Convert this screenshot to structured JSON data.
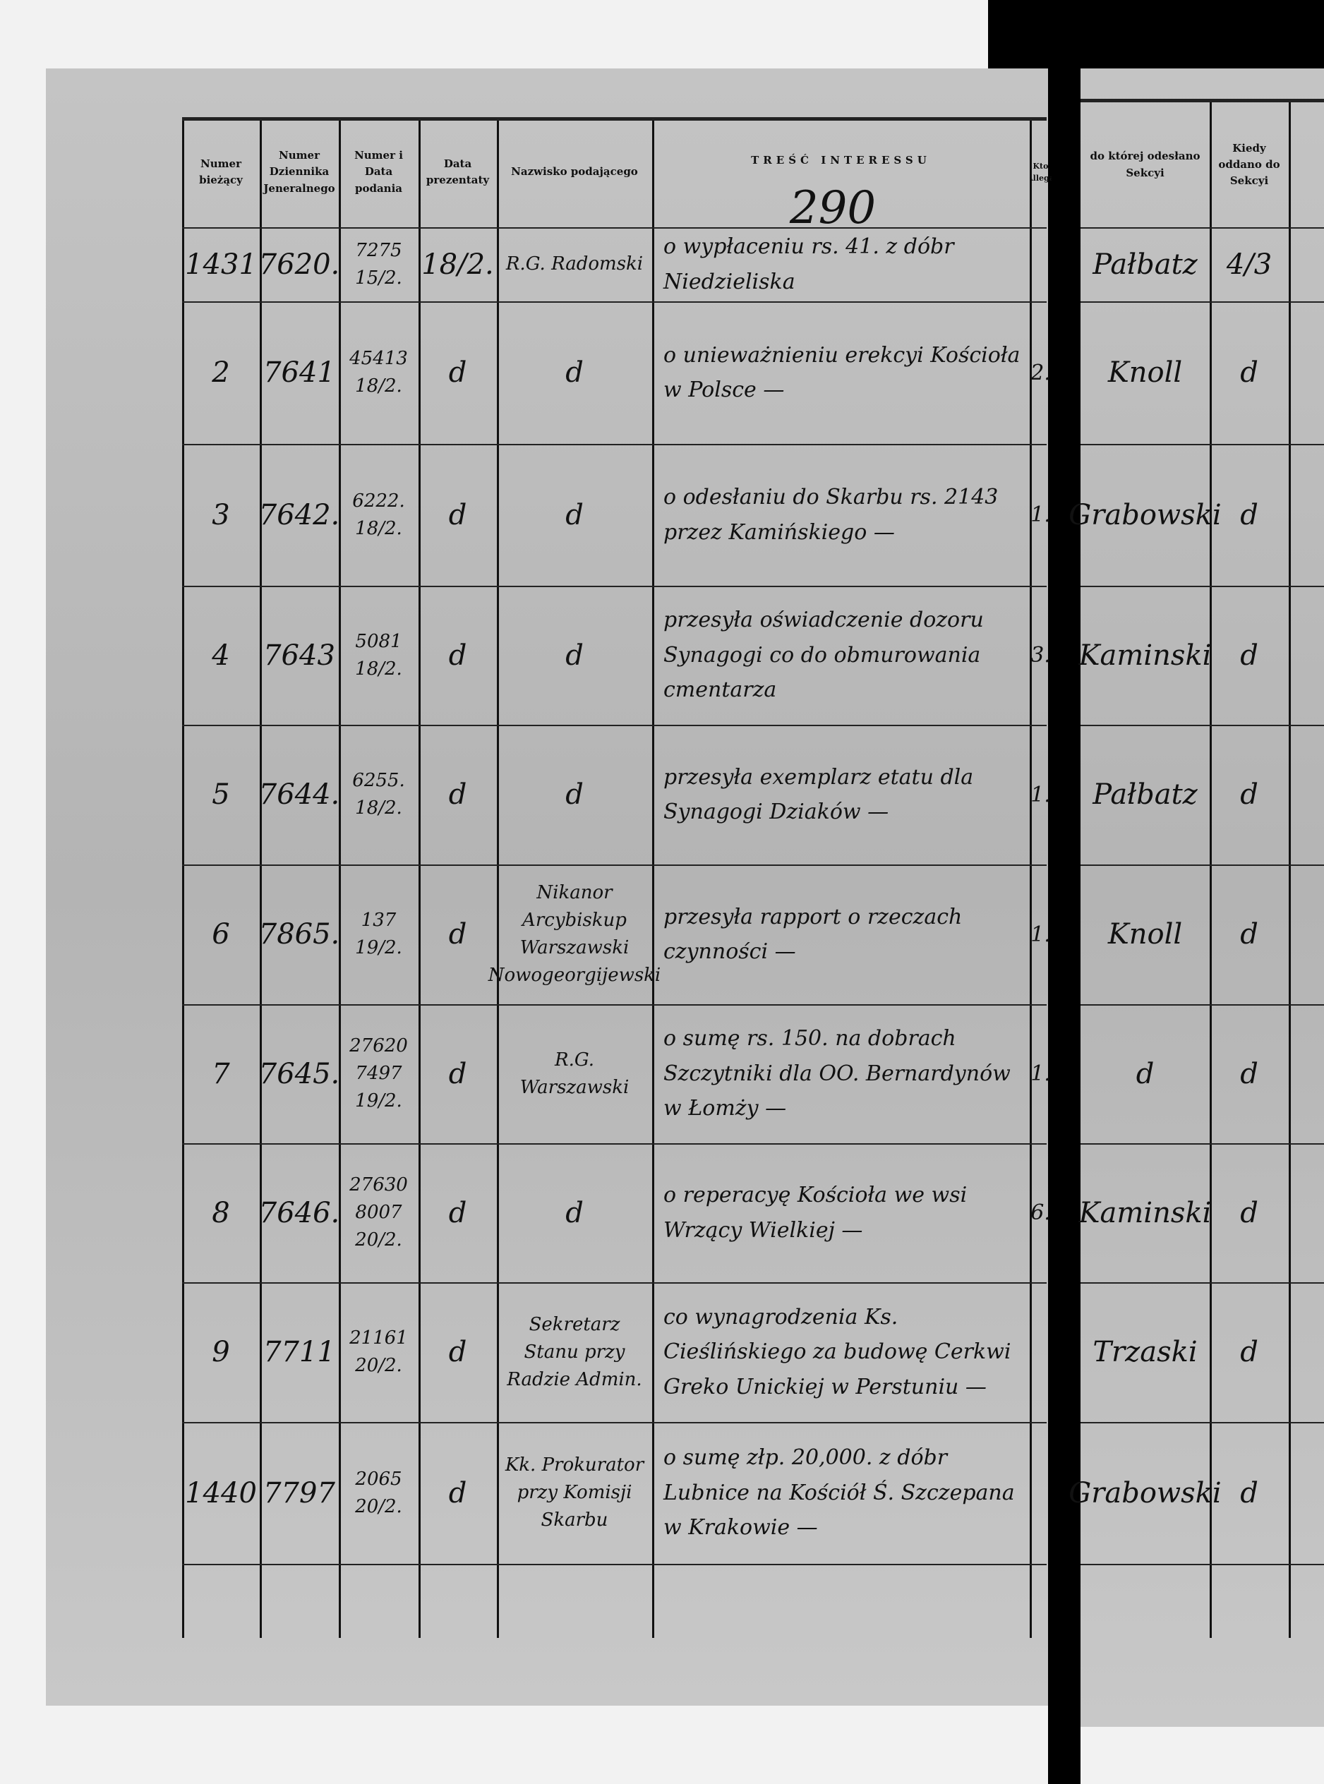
{
  "page_number": "290",
  "header": {
    "num": "Numer bieżący",
    "dziennik": "Numer Dziennika Jeneralnego",
    "podanie": "Numer i Data podania",
    "prezentata": "Data prezentaty",
    "nazwisko": "Nazwisko podającego",
    "tresc": "TREŚĆ INTERESSU",
    "allega": "Kto Allega",
    "sekcja": "do której odesłano Sekcyi",
    "kiedy": "Kiedy oddano do Sekcyi"
  },
  "rows": [
    {
      "num": "1431",
      "dziennik": "7620.",
      "podanie": "7275 15/2.",
      "prezentata": "18/2.",
      "nazwisko": "R.G. Radomski",
      "tresc": "o wypłaceniu rs. 41. z dóbr Niedzieliska",
      "sekcja": "Pałbatz",
      "kiedy": "4/3"
    },
    {
      "num": "2",
      "dziennik": "7641",
      "podanie": "45413 18/2.",
      "prezentata": "d",
      "nazwisko": "d",
      "tresc": "o unieważnieniu erekcyi Kościoła w Polsce —",
      "allega": "2.",
      "sekcja": "Knoll",
      "kiedy": "d"
    },
    {
      "num": "3",
      "dziennik": "7642.",
      "podanie": "6222. 18/2.",
      "prezentata": "d",
      "nazwisko": "d",
      "tresc": "o odesłaniu do Skarbu rs. 2143 przez Kamińskiego —",
      "allega": "1.",
      "sekcja": "Grabowski",
      "kiedy": "d"
    },
    {
      "num": "4",
      "dziennik": "7643",
      "podanie": "5081 18/2.",
      "prezentata": "d",
      "nazwisko": "d",
      "tresc": "przesyła oświadczenie dozoru Synagogi co do obmurowania cmentarza",
      "allega": "3.",
      "sekcja": "Kaminski",
      "kiedy": "d"
    },
    {
      "num": "5",
      "dziennik": "7644.",
      "podanie": "6255. 18/2.",
      "prezentata": "d",
      "nazwisko": "d",
      "tresc": "przesyła exemplarz etatu dla Synagogi Dziaków —",
      "allega": "1.",
      "sekcja": "Pałbatz",
      "kiedy": "d"
    },
    {
      "num": "6",
      "dziennik": "7865.",
      "podanie": "137 19/2.",
      "prezentata": "d",
      "nazwisko": "Nikanor Arcybiskup Warszawski Nowogeorgijewski",
      "tresc": "przesyła rapport o rzeczach czynności —",
      "allega": "1.",
      "sekcja": "Knoll",
      "kiedy": "d"
    },
    {
      "num": "7",
      "dziennik": "7645.",
      "podanie": "27620 7497 19/2.",
      "prezentata": "d",
      "nazwisko": "R.G. Warszawski",
      "tresc": "o sumę rs. 150. na dobrach Szczytniki dla OO. Bernardynów w Łomży —",
      "allega": "1.",
      "sekcja": "d",
      "kiedy": "d"
    },
    {
      "num": "8",
      "dziennik": "7646.",
      "podanie": "27630 8007 20/2.",
      "prezentata": "d",
      "nazwisko": "d",
      "tresc": "o reperacyę Kościoła we wsi Wrzący Wielkiej —",
      "allega": "6.",
      "sekcja": "Kaminski",
      "kiedy": "d"
    },
    {
      "num": "9",
      "dziennik": "7711",
      "podanie": "21161 20/2.",
      "prezentata": "d",
      "nazwisko": "Sekretarz Stanu przy Radzie Admin.",
      "tresc": "co wynagrodzenia Ks. Cieślińskiego za budowę Cerkwi Greko Unickiej w Perstuniu —",
      "sekcja": "Trzaski",
      "kiedy": "d"
    },
    {
      "num": "1440",
      "dziennik": "7797",
      "podanie": "2065 20/2.",
      "prezentata": "d",
      "nazwisko": "Kk. Prokurator przy Komisji Skarbu",
      "tresc": "o sumę złp. 20,000. z dóbr Lubnice na Kościół Ś. Szczepana w Krakowie —",
      "sekcja": "Grabowski",
      "kiedy": "d"
    }
  ]
}
